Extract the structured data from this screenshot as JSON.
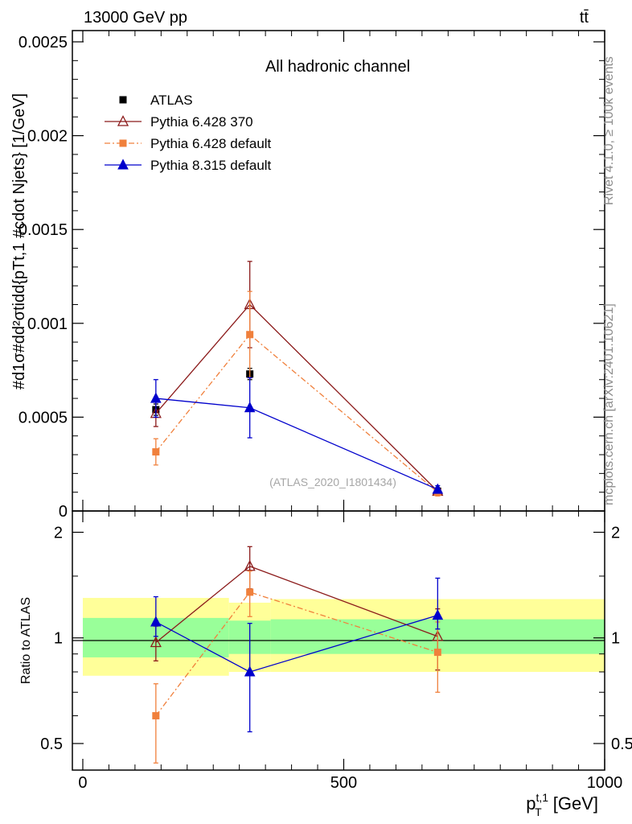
{
  "header": {
    "energy_label": "13000 GeV pp",
    "process_label": "tt̄"
  },
  "side_labels": {
    "rivet": "Rivet 4.1.0, ≥ 100k events",
    "mcplots": "mcplots.cern.ch [arXiv:2401.10621]"
  },
  "watermark": "(ATLAS_2020_I1801434)",
  "chart_data": [
    {
      "panel": "main",
      "type": "scatter",
      "title": "All hadronic channel",
      "xlabel": "p_T^{t,1} [GeV]",
      "ylabel": "#d1/σ#d d²σ^{tid}/d{p_T^{t,1} #cdot N_{jets}} [1/GeV]",
      "ylabel_display": "#d1σ#dd²σtidd{pTt,1 #cdot Njets} [1/GeV]",
      "xlim": [
        -20,
        1000
      ],
      "ylim": [
        0,
        0.00256
      ],
      "xticks": [
        0,
        500,
        1000
      ],
      "xtick_labels": [
        "0",
        "500",
        "1000"
      ],
      "yticks": [
        0,
        0.0005,
        0.001,
        0.0015,
        0.002,
        0.0025
      ],
      "ytick_labels": [
        "0",
        "0.0005",
        "0.001",
        "0.0015",
        "0.002",
        "0.0025"
      ],
      "legend_position": "top-left",
      "x": [
        140,
        320,
        680
      ],
      "series": [
        {
          "name": "ATLAS",
          "color": "#000000",
          "marker": "square",
          "line": "none",
          "values": [
            0.00054,
            0.00073,
            0.000105
          ],
          "err_lo": [
            3e-05,
            3e-05,
            5e-06
          ],
          "err_hi": [
            3e-05,
            3e-05,
            5e-06
          ]
        },
        {
          "name": "Pythia 6.428 370",
          "color": "#8b1a1a",
          "marker": "open-triangle",
          "line": "solid",
          "values": [
            0.00052,
            0.0011,
            0.000105
          ],
          "err_lo": [
            7e-05,
            0.00023,
            2e-05
          ],
          "err_hi": [
            7e-05,
            0.00023,
            2e-05
          ]
        },
        {
          "name": "Pythia 6.428 default",
          "color": "#f0803c",
          "marker": "square",
          "line": "dashdot",
          "values": [
            0.000315,
            0.00094,
            0.0001
          ],
          "err_lo": [
            7e-05,
            0.00023,
            2e-05
          ],
          "err_hi": [
            7e-05,
            0.00023,
            2e-05
          ]
        },
        {
          "name": "Pythia 8.315 default",
          "color": "#0000cc",
          "marker": "triangle",
          "line": "solid",
          "values": [
            0.0006,
            0.00055,
            0.000115
          ],
          "err_lo": [
            0.0001,
            0.00016,
            2e-05
          ],
          "err_hi": [
            0.0001,
            0.00016,
            2e-05
          ]
        }
      ]
    },
    {
      "panel": "ratio",
      "type": "scatter",
      "ylabel": "Ratio to ATLAS",
      "xlim": [
        -20,
        1000
      ],
      "ylim": [
        0.42,
        2.3
      ],
      "yscale": "log",
      "yticks": [
        0.5,
        1,
        2
      ],
      "ytick_labels": [
        "0.5",
        "1",
        "2"
      ],
      "x": [
        140,
        320,
        680
      ],
      "bands": [
        {
          "x": [
            0,
            280
          ],
          "yellow": [
            0.78,
            1.3
          ],
          "green": [
            0.88,
            1.14
          ]
        },
        {
          "x": [
            280,
            360
          ],
          "yellow": [
            0.8,
            1.26
          ],
          "green": [
            0.9,
            1.12
          ]
        },
        {
          "x": [
            360,
            1000
          ],
          "yellow": [
            0.8,
            1.29
          ],
          "green": [
            0.9,
            1.13
          ]
        }
      ],
      "series": [
        {
          "name": "Pythia 6.428 370",
          "color": "#8b1a1a",
          "marker": "open-triangle",
          "line": "solid",
          "values": [
            0.97,
            1.6,
            1.01
          ],
          "err_lo": [
            0.11,
            0.22,
            0.2
          ],
          "err_hi": [
            0.11,
            0.22,
            0.2
          ]
        },
        {
          "name": "Pythia 6.428 default",
          "color": "#f0803c",
          "marker": "square",
          "line": "dashdot",
          "values": [
            0.6,
            1.35,
            0.91
          ],
          "err_lo": [
            0.16,
            0.2,
            0.21
          ],
          "err_hi": [
            0.14,
            0.2,
            0.2
          ]
        },
        {
          "name": "Pythia 8.315 default",
          "color": "#0000cc",
          "marker": "triangle",
          "line": "solid",
          "values": [
            1.11,
            0.8,
            1.16
          ],
          "err_lo": [
            0.1,
            0.26,
            0.1
          ],
          "err_hi": [
            0.2,
            0.3,
            0.32
          ]
        }
      ]
    }
  ]
}
